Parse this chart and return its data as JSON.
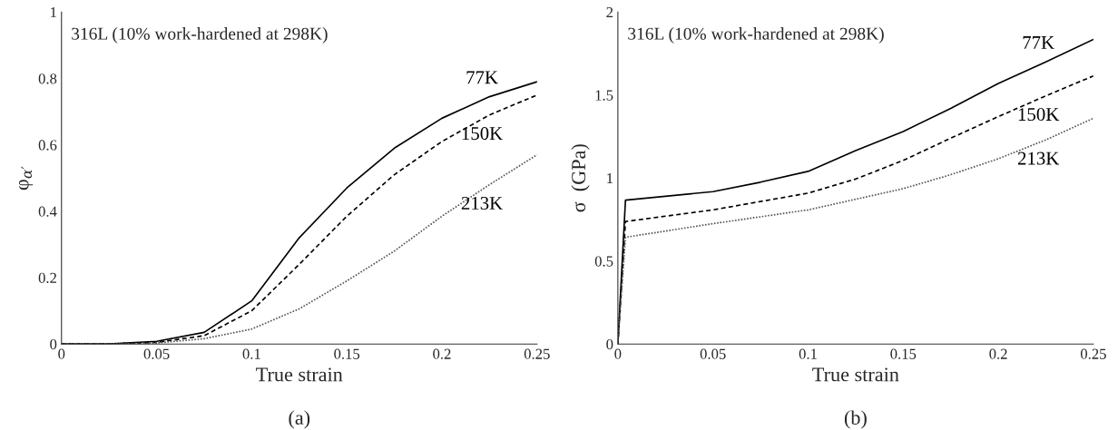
{
  "chart_data": [
    {
      "type": "line",
      "xlabel": "True strain",
      "ylabel": "φ$_{α′}$",
      "xlim": [
        0,
        0.25
      ],
      "ylim": [
        0,
        1
      ],
      "xticks": [
        0,
        0.05,
        0.1,
        0.15,
        0.2,
        0.25
      ],
      "yticks": [
        0,
        0.2,
        0.4,
        0.6,
        0.8,
        1
      ],
      "grid": false,
      "legend": false,
      "series": [
        {
          "name": "77K",
          "color": "#000000",
          "line_style": "solid",
          "x": [
            0,
            0.025,
            0.05,
            0.075,
            0.1,
            0.125,
            0.15,
            0.175,
            0.2,
            0.225,
            0.25
          ],
          "values": [
            0,
            0,
            0.008,
            0.035,
            0.13,
            0.32,
            0.47,
            0.59,
            0.68,
            0.745,
            0.79
          ]
        },
        {
          "name": "150K",
          "color": "#000000",
          "line_style": "dashed",
          "x": [
            0,
            0.025,
            0.05,
            0.075,
            0.1,
            0.125,
            0.15,
            0.175,
            0.2,
            0.225,
            0.25
          ],
          "values": [
            0,
            0,
            0.005,
            0.025,
            0.1,
            0.24,
            0.385,
            0.51,
            0.61,
            0.69,
            0.75
          ]
        },
        {
          "name": "213K",
          "color": "#555555",
          "line_style": "dotted",
          "x": [
            0,
            0.025,
            0.05,
            0.075,
            0.1,
            0.125,
            0.15,
            0.175,
            0.2,
            0.225,
            0.25
          ],
          "values": [
            0,
            0,
            0.003,
            0.016,
            0.045,
            0.106,
            0.19,
            0.28,
            0.385,
            0.48,
            0.57
          ]
        }
      ],
      "annotations": [
        "316L (10% work-hardened at 298K)",
        "(a)"
      ]
    },
    {
      "type": "line",
      "xlabel": "True strain",
      "ylabel": "σ  (GPa)",
      "xlim": [
        0,
        0.25
      ],
      "ylim": [
        0,
        2
      ],
      "xticks": [
        0,
        0.05,
        0.1,
        0.15,
        0.2,
        0.25
      ],
      "yticks": [
        0,
        0.5,
        1,
        1.5,
        2
      ],
      "grid": false,
      "legend": false,
      "series": [
        {
          "name": "77K",
          "color": "#000000",
          "line_style": "solid",
          "x": [
            0,
            0.004,
            0.05,
            0.075,
            0.1,
            0.125,
            0.15,
            0.175,
            0.2,
            0.225,
            0.25
          ],
          "values": [
            0,
            0.867,
            0.918,
            0.975,
            1.04,
            1.165,
            1.28,
            1.42,
            1.57,
            1.7,
            1.835
          ]
        },
        {
          "name": "150K",
          "color": "#000000",
          "line_style": "dashed",
          "x": [
            0,
            0.004,
            0.05,
            0.1,
            0.125,
            0.15,
            0.175,
            0.2,
            0.225,
            0.25
          ],
          "values": [
            0,
            0.738,
            0.808,
            0.909,
            0.994,
            1.106,
            1.24,
            1.37,
            1.495,
            1.615
          ]
        },
        {
          "name": "213K",
          "color": "#555555",
          "line_style": "dotted",
          "x": [
            0,
            0.004,
            0.05,
            0.1,
            0.15,
            0.175,
            0.2,
            0.225,
            0.25
          ],
          "values": [
            0,
            0.643,
            0.725,
            0.808,
            0.936,
            1.02,
            1.116,
            1.23,
            1.36
          ]
        }
      ],
      "annotations": [
        "316L (10% work-hardened at 298K)",
        "(b)"
      ]
    }
  ]
}
